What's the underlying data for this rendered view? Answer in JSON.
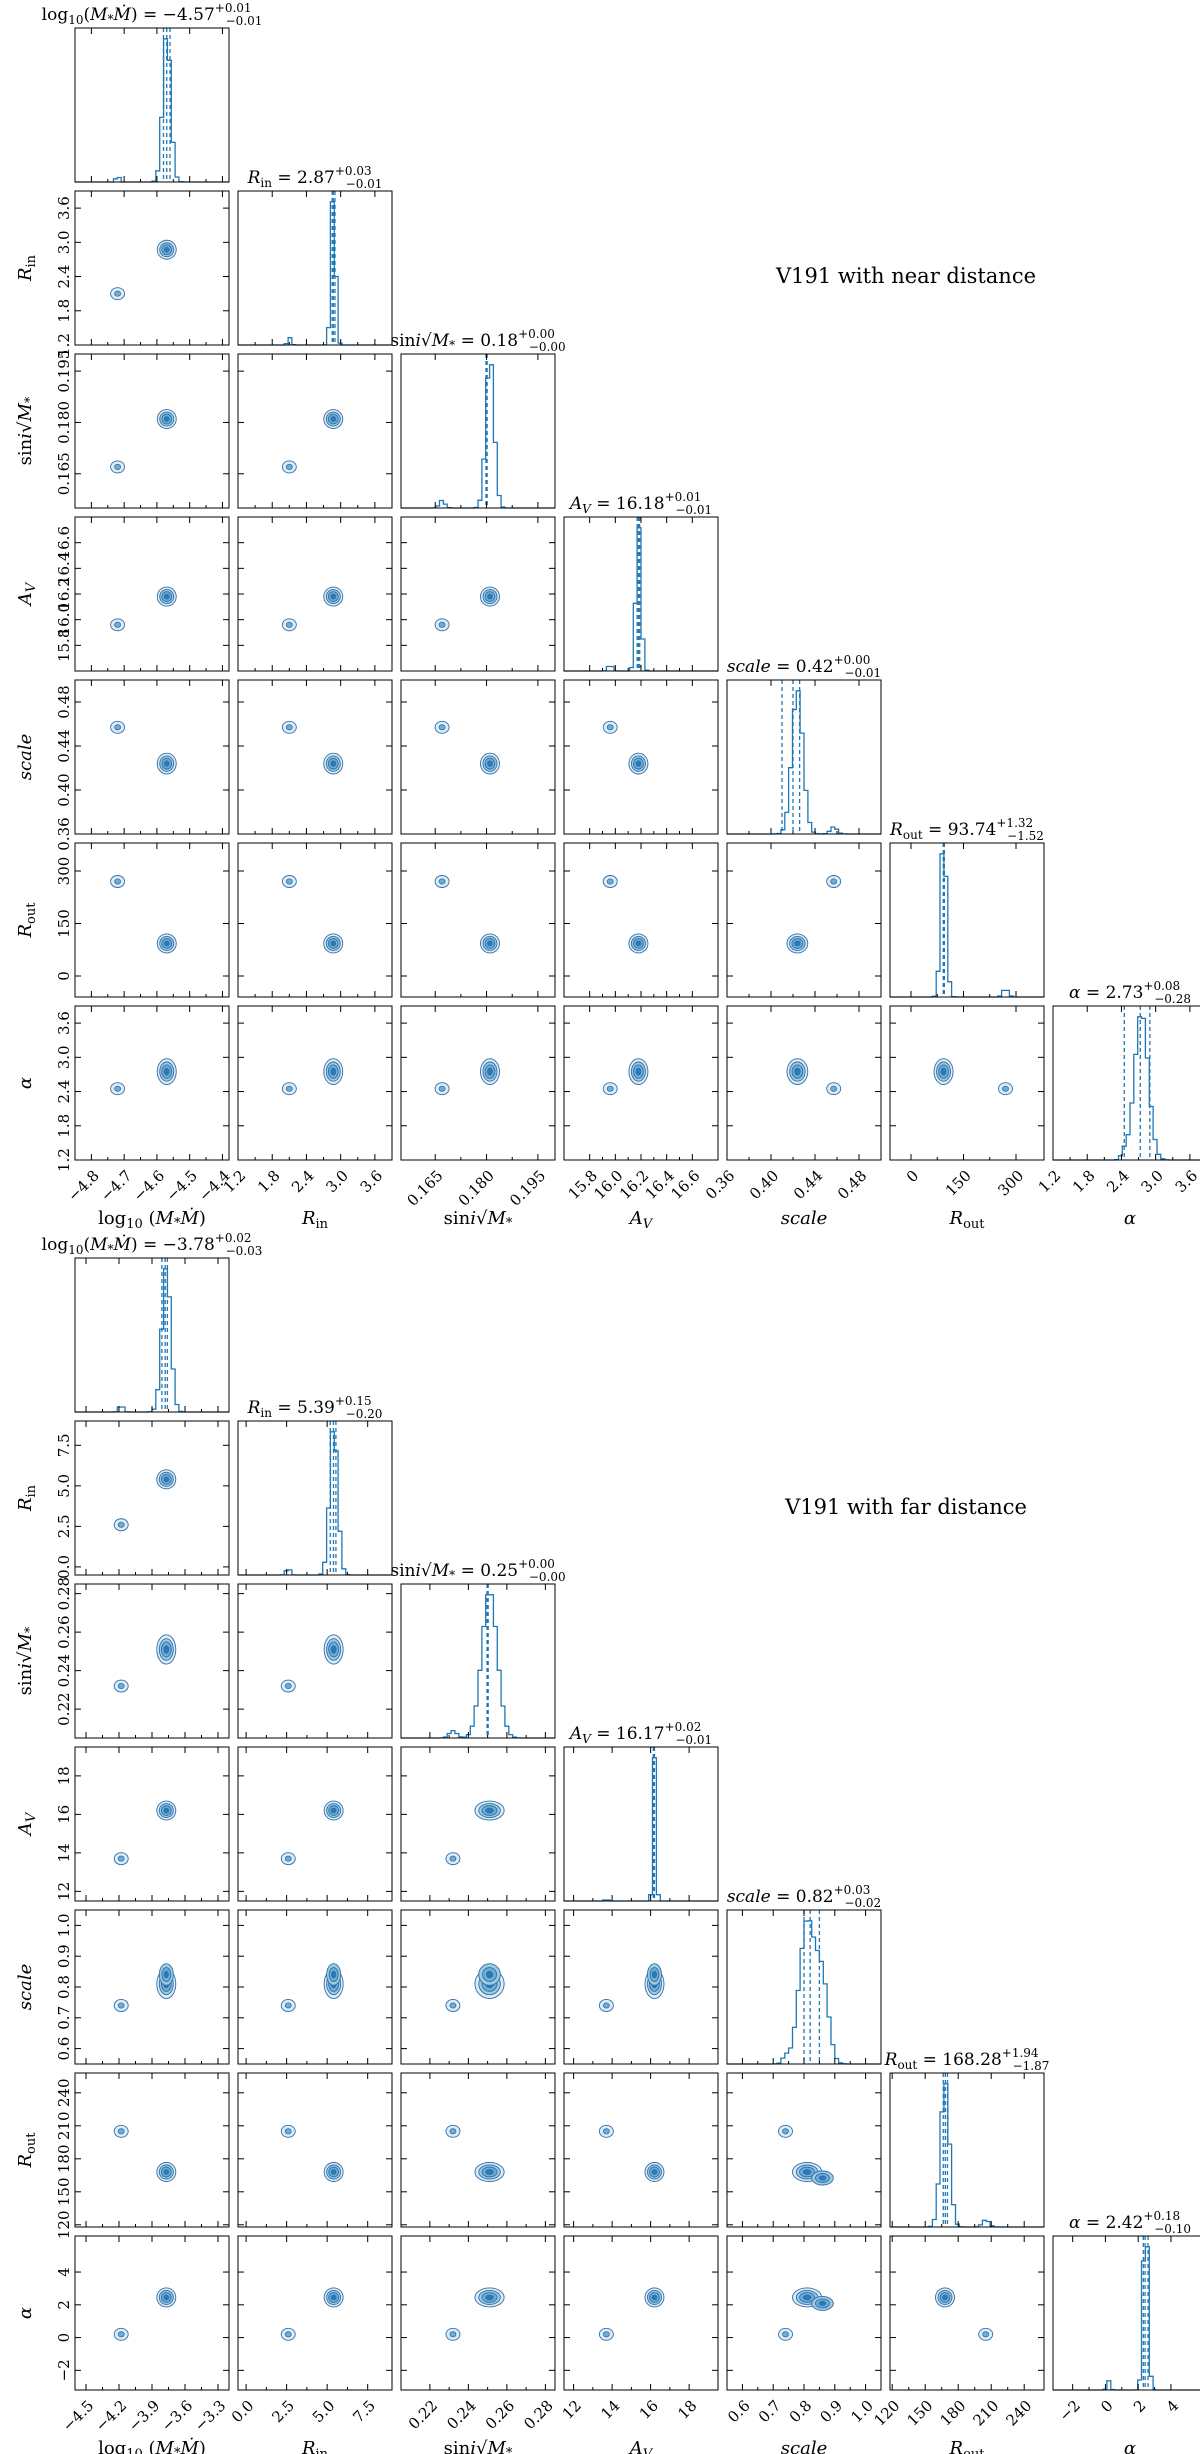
{
  "chart_data": [
    {
      "type": "corner",
      "title": "V191 with near distance",
      "parameters": [
        {
          "id": "logMMdot",
          "label": "log10(M*Ṁ)",
          "range": [
            -4.85,
            -4.38
          ],
          "ticks": [
            -4.8,
            -4.7,
            -4.6,
            -4.5,
            -4.4
          ],
          "tick_labels": [
            "−4.8",
            "−4.7",
            "−4.6",
            "−4.5",
            "−4.4"
          ],
          "median": -4.57,
          "plus": "0.01",
          "minus": "0.01",
          "title_text": "log10(M*Ṁ) = −4.57 +0.01 −0.01",
          "modes": [
            {
              "v": -4.57,
              "w": 1.0,
              "s": 0.012
            },
            {
              "v": -4.72,
              "w": 0.05,
              "s": 0.005
            }
          ]
        },
        {
          "id": "Rin",
          "label": "Rin",
          "range": [
            1.2,
            3.9
          ],
          "ticks": [
            1.2,
            1.8,
            2.4,
            3.0,
            3.6
          ],
          "tick_labels": [
            "1.2",
            "1.8",
            "2.4",
            "3.0",
            "3.6"
          ],
          "median": 2.87,
          "plus": "0.03",
          "minus": "0.01",
          "title_text": "Rin = 2.87 +0.03 −0.01",
          "modes": [
            {
              "v": 2.87,
              "w": 1.0,
              "s": 0.04
            },
            {
              "v": 2.1,
              "w": 0.05,
              "s": 0.03
            }
          ]
        },
        {
          "id": "sini",
          "label": "sini√M*",
          "range": [
            0.155,
            0.2
          ],
          "ticks": [
            0.165,
            0.18,
            0.195
          ],
          "tick_labels": [
            "0.165",
            "0.180",
            "0.195"
          ],
          "median": 0.18,
          "plus": "0.00",
          "minus": "0.00",
          "title_text": "sini√M* = 0.18 +0.00 −0.00",
          "modes": [
            {
              "v": 0.181,
              "w": 1.0,
              "s": 0.0012
            },
            {
              "v": 0.167,
              "w": 0.05,
              "s": 0.0008
            }
          ]
        },
        {
          "id": "AV",
          "label": "AV",
          "range": [
            15.6,
            16.8
          ],
          "ticks": [
            15.8,
            16.0,
            16.2,
            16.4,
            16.6
          ],
          "tick_labels": [
            "15.8",
            "16.0",
            "16.2",
            "16.4",
            "16.6"
          ],
          "median": 16.18,
          "plus": "0.01",
          "minus": "0.01",
          "title_text": "AV = 16.18 +0.01 −0.01",
          "modes": [
            {
              "v": 16.18,
              "w": 1.0,
              "s": 0.02
            },
            {
              "v": 15.96,
              "w": 0.05,
              "s": 0.015
            }
          ]
        },
        {
          "id": "scale",
          "label": "scale",
          "range": [
            0.36,
            0.5
          ],
          "ticks": [
            0.36,
            0.4,
            0.44,
            0.48
          ],
          "tick_labels": [
            "0.36",
            "0.40",
            "0.44",
            "0.48"
          ],
          "median": 0.42,
          "plus": "0.00",
          "minus": "0.01",
          "title_text": "scale = 0.42 +0.00 −0.01",
          "modes": [
            {
              "v": 0.424,
              "w": 1.0,
              "s": 0.005
            },
            {
              "v": 0.457,
              "w": 0.05,
              "s": 0.003
            }
          ]
        },
        {
          "id": "Rout",
          "label": "Rout",
          "range": [
            -60,
            380
          ],
          "ticks": [
            0,
            150,
            300
          ],
          "tick_labels": [
            "0",
            "150",
            "300"
          ],
          "median": 93.74,
          "plus": "1.32",
          "minus": "1.52",
          "title_text": "Rout = 93.74 +1.32 −1.52",
          "modes": [
            {
              "v": 93,
              "w": 1.0,
              "s": 8
            },
            {
              "v": 270,
              "w": 0.05,
              "s": 8
            }
          ]
        },
        {
          "id": "alpha",
          "label": "α",
          "range": [
            1.2,
            3.9
          ],
          "ticks": [
            1.2,
            1.8,
            2.4,
            3.0,
            3.6
          ],
          "tick_labels": [
            "1.2",
            "1.8",
            "2.4",
            "3.0",
            "3.6"
          ],
          "median": 2.73,
          "plus": "0.08",
          "minus": "0.28",
          "title_text": "α = 2.73 +0.08 −0.28",
          "modes": [
            {
              "v": 2.75,
              "w": 1.0,
              "s": 0.12
            },
            {
              "v": 2.45,
              "w": 0.05,
              "s": 0.05
            }
          ]
        }
      ]
    },
    {
      "type": "corner",
      "title": "V191 with far distance",
      "parameters": [
        {
          "id": "logMMdot",
          "label": "log10(M*Ṁ)",
          "range": [
            -4.6,
            -3.2
          ],
          "ticks": [
            -4.5,
            -4.2,
            -3.9,
            -3.6,
            -3.3
          ],
          "tick_labels": [
            "−4.5",
            "−4.2",
            "−3.9",
            "−3.6",
            "−3.3"
          ],
          "median": -3.78,
          "plus": "0.02",
          "minus": "0.03",
          "title_text": "log10(M*Ṁ) = −3.78 +0.02 −0.03",
          "modes": [
            {
              "v": -3.77,
              "w": 1.0,
              "s": 0.04
            },
            {
              "v": -4.18,
              "w": 0.05,
              "s": 0.02
            }
          ]
        },
        {
          "id": "Rin",
          "label": "Rin",
          "range": [
            -0.5,
            9.0
          ],
          "ticks": [
            0.0,
            2.5,
            5.0,
            7.5
          ],
          "tick_labels": [
            "0.0",
            "2.5",
            "5.0",
            "7.5"
          ],
          "median": 5.39,
          "plus": "0.15",
          "minus": "0.20",
          "title_text": "Rin = 5.39 +0.15 −0.20",
          "modes": [
            {
              "v": 5.4,
              "w": 1.0,
              "s": 0.25
            },
            {
              "v": 2.6,
              "w": 0.05,
              "s": 0.12
            }
          ]
        },
        {
          "id": "sini",
          "label": "sini√M*",
          "range": [
            0.205,
            0.285
          ],
          "ticks": [
            0.22,
            0.24,
            0.26,
            0.28
          ],
          "tick_labels": [
            "0.22",
            "0.24",
            "0.26",
            "0.28"
          ],
          "median": 0.25,
          "plus": "0.00",
          "minus": "0.00",
          "title_text": "sini√M* = 0.25 +0.00 −0.00",
          "modes": [
            {
              "v": 0.251,
              "w": 1.0,
              "s": 0.004
            },
            {
              "v": 0.232,
              "w": 0.05,
              "s": 0.002
            }
          ]
        },
        {
          "id": "AV",
          "label": "AV",
          "range": [
            11.5,
            19.5
          ],
          "ticks": [
            12,
            14,
            16,
            18
          ],
          "tick_labels": [
            "12",
            "14",
            "16",
            "18"
          ],
          "median": 16.17,
          "plus": "0.02",
          "minus": "0.01",
          "title_text": "AV = 16.17 +0.02 −0.01",
          "modes": [
            {
              "v": 16.2,
              "w": 1.0,
              "s": 0.08
            },
            {
              "v": 13.7,
              "w": 0.05,
              "s": 0.05
            }
          ]
        },
        {
          "id": "scale",
          "label": "scale",
          "range": [
            0.55,
            1.05
          ],
          "ticks": [
            0.6,
            0.7,
            0.8,
            0.9,
            1.0
          ],
          "tick_labels": [
            "0.6",
            "0.7",
            "0.8",
            "0.9",
            "1.0"
          ],
          "median": 0.82,
          "plus": "0.03",
          "minus": "0.02",
          "title_text": "scale = 0.82 +0.03 −0.02",
          "modes": [
            {
              "v": 0.81,
              "w": 1.0,
              "s": 0.025
            },
            {
              "v": 0.86,
              "w": 0.55,
              "s": 0.02
            },
            {
              "v": 0.74,
              "w": 0.05,
              "s": 0.01
            }
          ]
        },
        {
          "id": "Rout",
          "label": "Rout",
          "range": [
            118,
            258
          ],
          "ticks": [
            120,
            150,
            180,
            210,
            240
          ],
          "tick_labels": [
            "120",
            "150",
            "180",
            "210",
            "240"
          ],
          "median": 168.28,
          "plus": "1.94",
          "minus": "1.87",
          "title_text": "Rout = 168.28 +1.94 −1.87",
          "modes": [
            {
              "v": 168,
              "w": 1.0,
              "s": 4
            },
            {
              "v": 205,
              "w": 0.05,
              "s": 3
            }
          ]
        },
        {
          "id": "alpha",
          "label": "α",
          "range": [
            -3.2,
            6.2
          ],
          "ticks": [
            -2,
            0,
            2,
            4
          ],
          "tick_labels": [
            "−2",
            "0",
            "2",
            "4"
          ],
          "median": 2.42,
          "plus": "0.18",
          "minus": "0.10",
          "title_text": "α = 2.42 +0.18 −0.10",
          "modes": [
            {
              "v": 2.45,
              "w": 1.0,
              "s": 0.15
            },
            {
              "v": 0.2,
              "w": 0.05,
              "s": 0.1
            }
          ]
        }
      ]
    }
  ],
  "colors": {
    "line": "#1f77b4",
    "contour_fills": [
      "#deebf7",
      "#9ecae1",
      "#6baed6",
      "#2b7bba"
    ],
    "contour_stroke": "#2f6fa8"
  }
}
